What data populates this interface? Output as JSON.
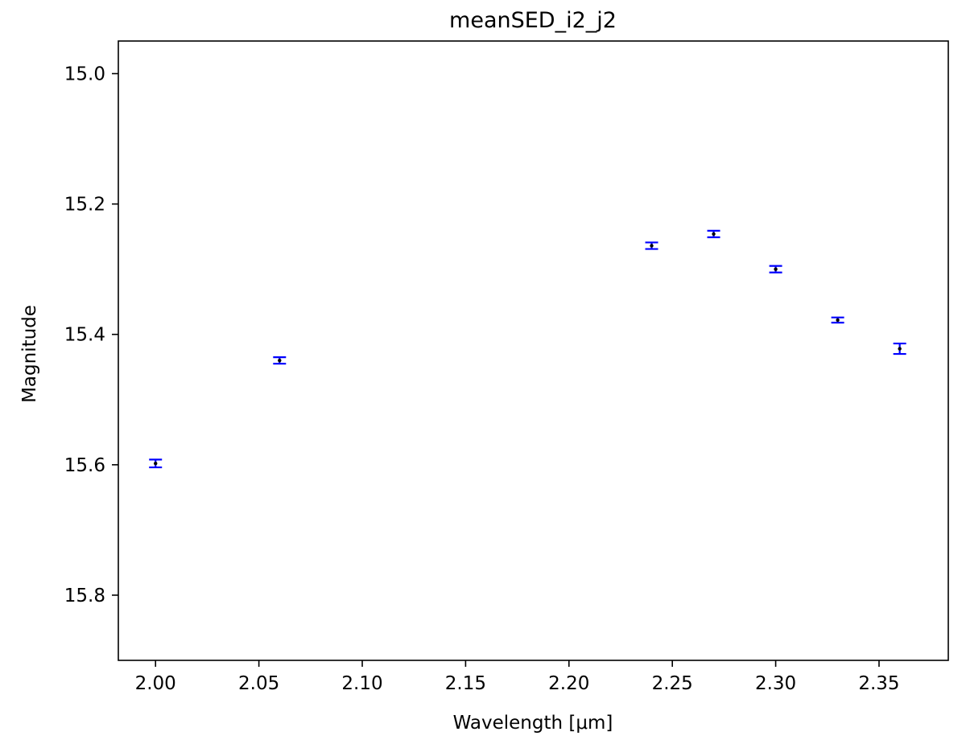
{
  "chart_data": {
    "type": "scatter",
    "title": "meanSED_i2_j2",
    "xlabel": "Wavelength [μm]",
    "ylabel": "Magnitude",
    "xlim": [
      1.982,
      2.3835
    ],
    "ylim": [
      15.9,
      14.95
    ],
    "y_inverted": true,
    "grid": false,
    "x_ticks": [
      "2.00",
      "2.05",
      "2.10",
      "2.15",
      "2.20",
      "2.25",
      "2.30",
      "2.35"
    ],
    "y_ticks": [
      "15.0",
      "15.2",
      "15.4",
      "15.6",
      "15.8"
    ],
    "series": [
      {
        "marker": "errorbar",
        "color": "#0000ff",
        "points": [
          {
            "x": 2.0,
            "y": 15.598,
            "err": 0.006
          },
          {
            "x": 2.06,
            "y": 15.44,
            "err": 0.005
          },
          {
            "x": 2.24,
            "y": 15.264,
            "err": 0.005
          },
          {
            "x": 2.27,
            "y": 15.246,
            "err": 0.005
          },
          {
            "x": 2.3,
            "y": 15.3,
            "err": 0.005
          },
          {
            "x": 2.33,
            "y": 15.378,
            "err": 0.004
          },
          {
            "x": 2.36,
            "y": 15.422,
            "err": 0.008
          }
        ]
      }
    ]
  }
}
